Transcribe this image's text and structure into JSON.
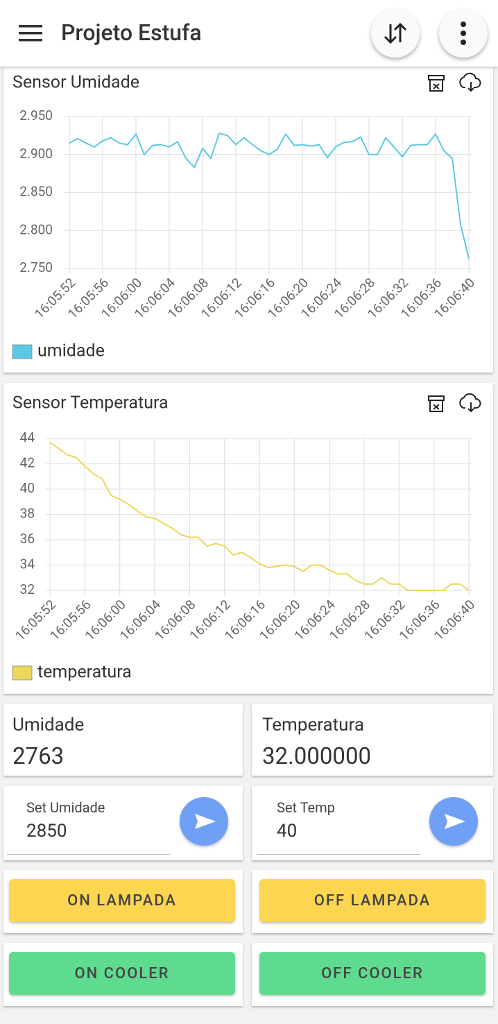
{
  "header": {
    "title": "Projeto Estufa"
  },
  "chart_data": [
    {
      "type": "line",
      "title": "Sensor Umidade",
      "categories": [
        "16:05:52",
        null,
        null,
        null,
        "16:05:56",
        null,
        null,
        null,
        "16:06:00",
        null,
        null,
        null,
        "16:06:04",
        null,
        null,
        null,
        "16:06:08",
        null,
        null,
        null,
        "16:06:12",
        null,
        null,
        null,
        "16:06:16",
        null,
        null,
        null,
        "16:06:20",
        null,
        null,
        null,
        "16:06:24",
        null,
        null,
        null,
        "16:06:28",
        null,
        null,
        null,
        "16:06:32",
        null,
        null,
        null,
        "16:06:36",
        null,
        null,
        null,
        "16:06:40"
      ],
      "series": [
        {
          "name": "umidade",
          "color": "#5bc8e6",
          "values": [
            2.915,
            2.921,
            2.915,
            2.91,
            2.918,
            2.922,
            2.915,
            2.913,
            2.927,
            2.9,
            2.912,
            2.913,
            2.91,
            2.917,
            2.895,
            2.883,
            2.908,
            2.895,
            2.928,
            2.925,
            2.913,
            2.922,
            2.913,
            2.905,
            2.9,
            2.907,
            2.927,
            2.912,
            2.913,
            2.911,
            2.913,
            2.896,
            2.91,
            2.916,
            2.917,
            2.923,
            2.9,
            2.9,
            2.922,
            2.91,
            2.897,
            2.912,
            2.913,
            2.913,
            2.927,
            2.905,
            2.895,
            2.808,
            2.763
          ]
        }
      ],
      "ylim": [
        2.75,
        2.95
      ],
      "yticks": [
        {
          "value": 2.75,
          "label": "2.750"
        },
        {
          "value": 2.8,
          "label": "2.800"
        },
        {
          "value": 2.85,
          "label": "2.850"
        },
        {
          "value": 2.9,
          "label": "2.900"
        },
        {
          "value": 2.95,
          "label": "2.950"
        }
      ],
      "grid": true
    },
    {
      "type": "line",
      "title": "Sensor Temperatura",
      "categories": [
        "16:05:52",
        null,
        null,
        null,
        "16:05:56",
        null,
        null,
        null,
        "16:06:00",
        null,
        null,
        null,
        "16:06:04",
        null,
        null,
        null,
        "16:06:08",
        null,
        null,
        null,
        "16:06:12",
        null,
        null,
        null,
        "16:06:16",
        null,
        null,
        null,
        "16:06:20",
        null,
        null,
        null,
        "16:06:24",
        null,
        null,
        null,
        "16:06:28",
        null,
        null,
        null,
        "16:06:32",
        null,
        null,
        null,
        "16:06:36",
        null,
        null,
        null,
        "16:06:40"
      ],
      "series": [
        {
          "name": "temperatura",
          "color": "#ecd75c",
          "values": [
            43.7,
            43.2,
            42.7,
            42.5,
            41.8,
            41.2,
            40.8,
            39.5,
            39.2,
            38.8,
            38.3,
            37.8,
            37.7,
            37.3,
            36.9,
            36.4,
            36.2,
            36.2,
            35.5,
            35.7,
            35.5,
            34.8,
            35.0,
            34.6,
            34.1,
            33.8,
            33.9,
            34.0,
            33.9,
            33.5,
            34.0,
            34.0,
            33.6,
            33.3,
            33.3,
            32.8,
            32.5,
            32.5,
            33.0,
            32.5,
            32.5,
            32.0,
            32.0,
            32.0,
            32.0,
            32.0,
            32.5,
            32.5,
            32.0
          ]
        }
      ],
      "ylim": [
        32,
        44
      ],
      "yticks": [
        32,
        34,
        36,
        38,
        40,
        42,
        44
      ],
      "grid": true
    }
  ],
  "readings": [
    {
      "label": "Umidade",
      "value": "2763"
    },
    {
      "label": "Temperatura",
      "value": "32.000000"
    }
  ],
  "setpoints": [
    {
      "label": "Set Umidade",
      "value": "2850"
    },
    {
      "label": "Set Temp",
      "value": "40"
    }
  ],
  "buttons": [
    [
      "ON LAMPADA",
      "OFF LAMPADA"
    ],
    [
      "ON COOLER",
      "OFF COOLER"
    ]
  ]
}
